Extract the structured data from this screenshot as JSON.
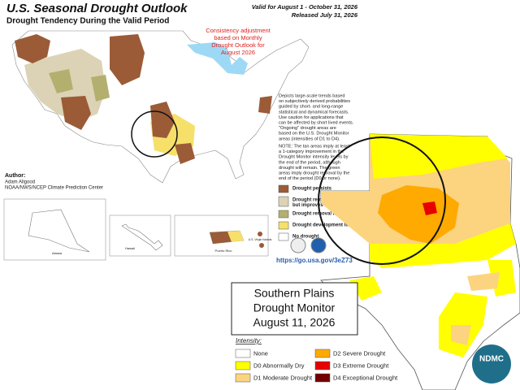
{
  "outlook": {
    "title": "U.S. Seasonal Drought Outlook",
    "subtitle": "Drought Tendency During the Valid Period",
    "valid": "Valid for August 1 - October 31, 2026",
    "released": "Released July 31, 2026",
    "annotation": [
      "Consistency adjustment",
      "based on Monthly",
      "Drought Outlook for",
      "August 2026"
    ],
    "description": [
      "Depicts large-scale trends based",
      "on subjectively derived probabilities",
      "guided by short- and long-range",
      "statistical and dynamical forecasts.",
      "Use caution for applications that",
      "can be affected by short lived events.",
      "\"Ongoing\" drought areas are",
      "based on the U.S. Drought Monitor",
      "areas (intensities of D1 to D4)."
    ],
    "note": [
      "NOTE: The tan areas imply at least",
      "a 1-category improvement in the",
      "Drought Monitor intensity levels by",
      "the end of the period, although",
      "drought will remain. The green",
      "areas imply drought removal by the",
      "end of the period (D0 or none)."
    ],
    "legend": [
      {
        "label": [
          "Drought persists"
        ],
        "color": "#9b5b37"
      },
      {
        "label": [
          "Drought remains,",
          "but improves"
        ],
        "color": "#dcd3b6"
      },
      {
        "label": [
          "Drought removal likely"
        ],
        "color": "#b3b06f"
      },
      {
        "label": [
          "Drought development likely"
        ],
        "color": "#f6e06a"
      },
      {
        "label": [
          "No drought"
        ],
        "color": "#ffffff"
      }
    ],
    "author": {
      "label": "Author:",
      "lines": [
        "Adam Allgood",
        "NOAA/NWS/NCEP Climate Prediction Center"
      ]
    },
    "insets": {
      "alaska": "Alaska",
      "hawaii": "Hawaii",
      "puerto_rico": "Puerto Rico",
      "virgin_islands": "U.S. Virgin Islands"
    },
    "url": "https://go.usa.gov/3eZ73"
  },
  "drought_monitor": {
    "title": [
      "Southern Plains",
      "Drought Monitor",
      "August 11, 2026"
    ],
    "intensity_label": "Intensity:",
    "legend": [
      {
        "label": "None",
        "color": "#ffffff"
      },
      {
        "label": "D0 Abnormally Dry",
        "color": "#ffff00"
      },
      {
        "label": "D1 Moderate Drought",
        "color": "#fcd37f"
      },
      {
        "label": "D2 Severe Drought",
        "color": "#ffaa00"
      },
      {
        "label": "D3 Extreme Drought",
        "color": "#e60000"
      },
      {
        "label": "D4 Exceptional Drought",
        "color": "#730000"
      }
    ],
    "logo": "NDMC"
  }
}
